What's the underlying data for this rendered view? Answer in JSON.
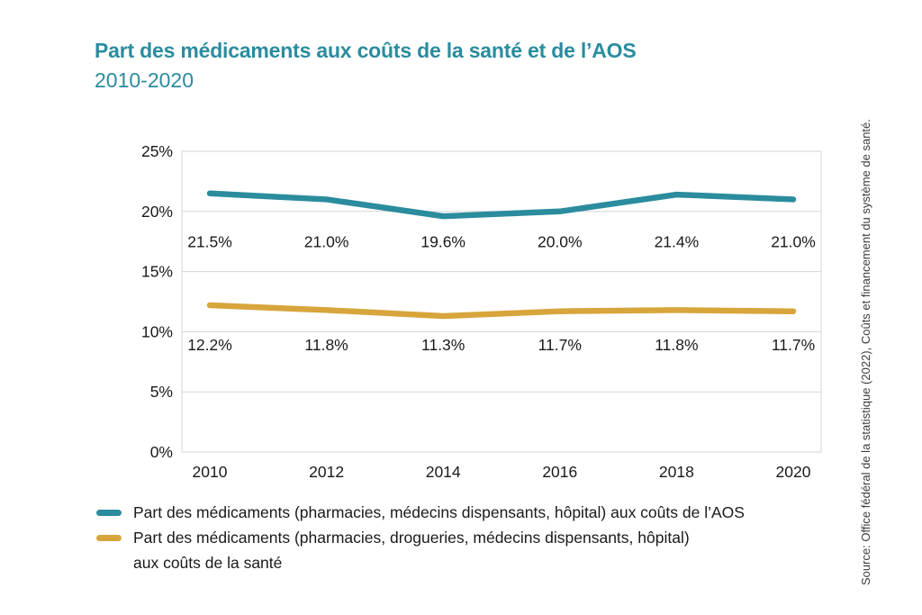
{
  "title": {
    "line1": "Part des médicaments aux coûts de la santé et de l’AOS",
    "line2": "2010-2020"
  },
  "source": "Source: Office fédéral de la statistique (2022), Coûts et financement du système de santé.",
  "colors": {
    "title": "#2b8c9e",
    "aos_line": "#2b8c9e",
    "sante_line": "#d8a53c",
    "grid": "#d6d6d6",
    "text": "#1a1a1a",
    "source_text": "#3c3c3c"
  },
  "chart_data": {
    "type": "line",
    "x": [
      "2010",
      "2012",
      "2014",
      "2016",
      "2018",
      "2020"
    ],
    "series": [
      {
        "name": "Part des médicaments (pharmacies, médecins dispensants, hôpital) aux coûts de l’AOS",
        "values": [
          21.5,
          21.0,
          19.6,
          20.0,
          21.4,
          21.0
        ],
        "point_labels": [
          "21.5%",
          "21.0%",
          "19.6%",
          "20.0%",
          "21.4%",
          "21.0%"
        ],
        "color": "#2b8c9e"
      },
      {
        "name": "Part des médicaments (pharmacies, drogueries, médecins dispensants, hôpital) aux coûts de la santé",
        "values": [
          12.2,
          11.8,
          11.3,
          11.7,
          11.8,
          11.7
        ],
        "point_labels": [
          "12.2%",
          "11.8%",
          "11.3%",
          "11.7%",
          "11.8%",
          "11.7%"
        ],
        "color": "#d8a53c"
      }
    ],
    "ylim": [
      0,
      25
    ],
    "yticks": [
      0,
      5,
      10,
      15,
      20,
      25
    ],
    "ytick_labels": [
      "0%",
      "5%",
      "10%",
      "15%",
      "20%",
      "25%"
    ],
    "grid": "horizontal",
    "legend_position": "bottom"
  },
  "legend": {
    "items": [
      {
        "color": "#2b8c9e",
        "lines": [
          "Part des médicaments (pharmacies, médecins dispensants, hôpital) aux coûts de l’AOS"
        ]
      },
      {
        "color": "#d8a53c",
        "lines": [
          "Part des médicaments (pharmacies, drogueries, médecins dispensants, hôpital)",
          "aux coûts de la santé"
        ]
      }
    ]
  }
}
